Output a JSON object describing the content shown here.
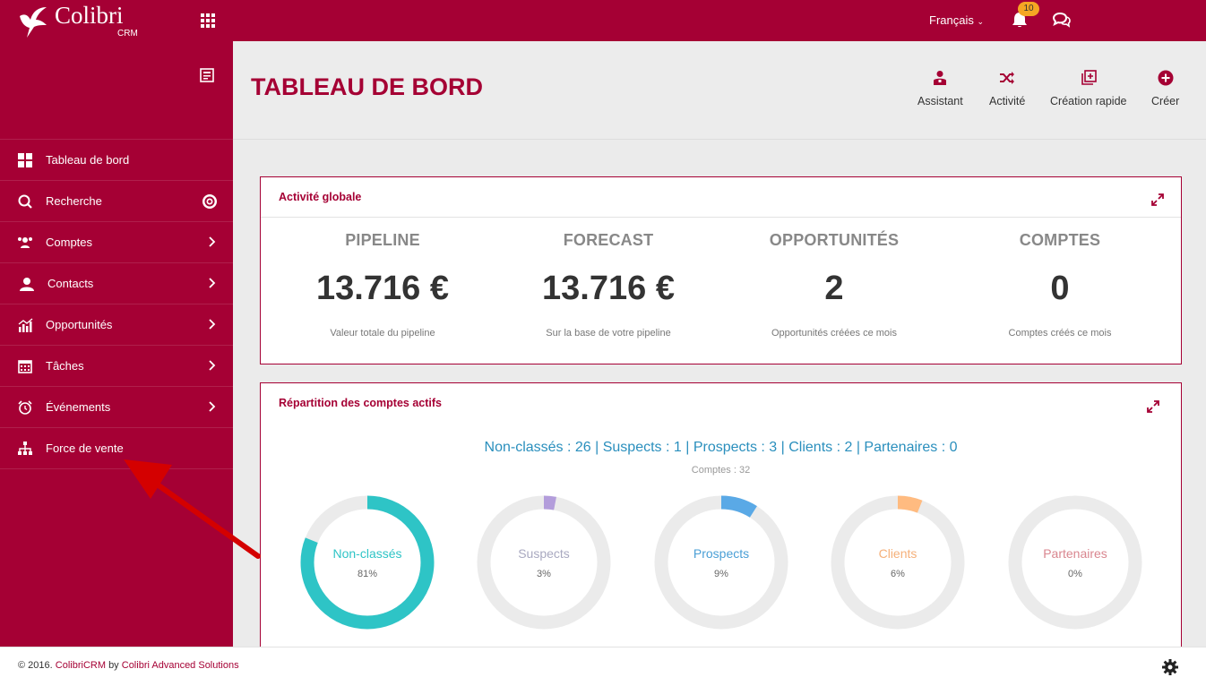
{
  "topbar": {
    "logo_text": "Colibri",
    "logo_sub": "CRM",
    "language": "Français",
    "notifications_count": "10",
    "icons": [
      "apps-grid-icon",
      "bell-icon",
      "chat-icon"
    ]
  },
  "sidebar": {
    "items": [
      {
        "label": "Tableau de bord",
        "icon": "dashboard-icon"
      },
      {
        "label": "Recherche",
        "icon": "search-icon"
      },
      {
        "label": "Comptes",
        "icon": "accounts-icon"
      },
      {
        "label": "Contacts",
        "icon": "contacts-icon"
      },
      {
        "label": "Opportunités",
        "icon": "chart-icon"
      },
      {
        "label": "Tâches",
        "icon": "calendar-icon"
      },
      {
        "label": "Événements",
        "icon": "alarm-clock-icon"
      },
      {
        "label": "Force de vente",
        "icon": "hierarchy-icon"
      }
    ]
  },
  "header": {
    "title": "TABLEAU DE BORD",
    "actions": [
      {
        "label": "Assistant",
        "icon": "assistant-icon"
      },
      {
        "label": "Activité",
        "icon": "shuffle-icon"
      },
      {
        "label": "Création rapide",
        "icon": "quick-create-icon"
      },
      {
        "label": "Créer",
        "icon": "plus-circle-icon"
      }
    ]
  },
  "activity": {
    "title": "Activité globale",
    "stats": [
      {
        "label": "PIPELINE",
        "value": "13.716 €",
        "sub": "Valeur totale du pipeline"
      },
      {
        "label": "FORECAST",
        "value": "13.716 €",
        "sub": "Sur la base de votre pipeline"
      },
      {
        "label": "OPPORTUNITÉS",
        "value": "2",
        "sub": "Opportunités créées ce mois"
      },
      {
        "label": "COMPTES",
        "value": "0",
        "sub": "Comptes créés ce mois"
      }
    ]
  },
  "accounts": {
    "title": "Répartition des comptes actifs",
    "summary": "Non-classés : 26 | Suspects : 1 | Prospects : 3 | Clients : 2 | Partenaires : 0",
    "total": "Comptes : 32",
    "donuts": [
      {
        "label": "Non-classés",
        "pct_text": "81%",
        "fraction": 0.81,
        "color": "#2ec4c6",
        "label_color": "#2ec4c6"
      },
      {
        "label": "Suspects",
        "pct_text": "3%",
        "fraction": 0.03,
        "color": "#b39ddb",
        "label_color": "#a9a9c0"
      },
      {
        "label": "Prospects",
        "pct_text": "9%",
        "fraction": 0.09,
        "color": "#5aa9e6",
        "label_color": "#4a9fd6"
      },
      {
        "label": "Clients",
        "pct_text": "6%",
        "fraction": 0.06,
        "color": "#ffbb80",
        "label_color": "#f5b07a"
      },
      {
        "label": "Partenaires",
        "pct_text": "0%",
        "fraction": 0.0,
        "color": "#e8a0a0",
        "label_color": "#d9868f"
      }
    ]
  },
  "footer": {
    "copyright": "© 2016.",
    "brand": "ColibriCRM",
    "by": "by",
    "company": "Colibri Advanced Solutions"
  }
}
